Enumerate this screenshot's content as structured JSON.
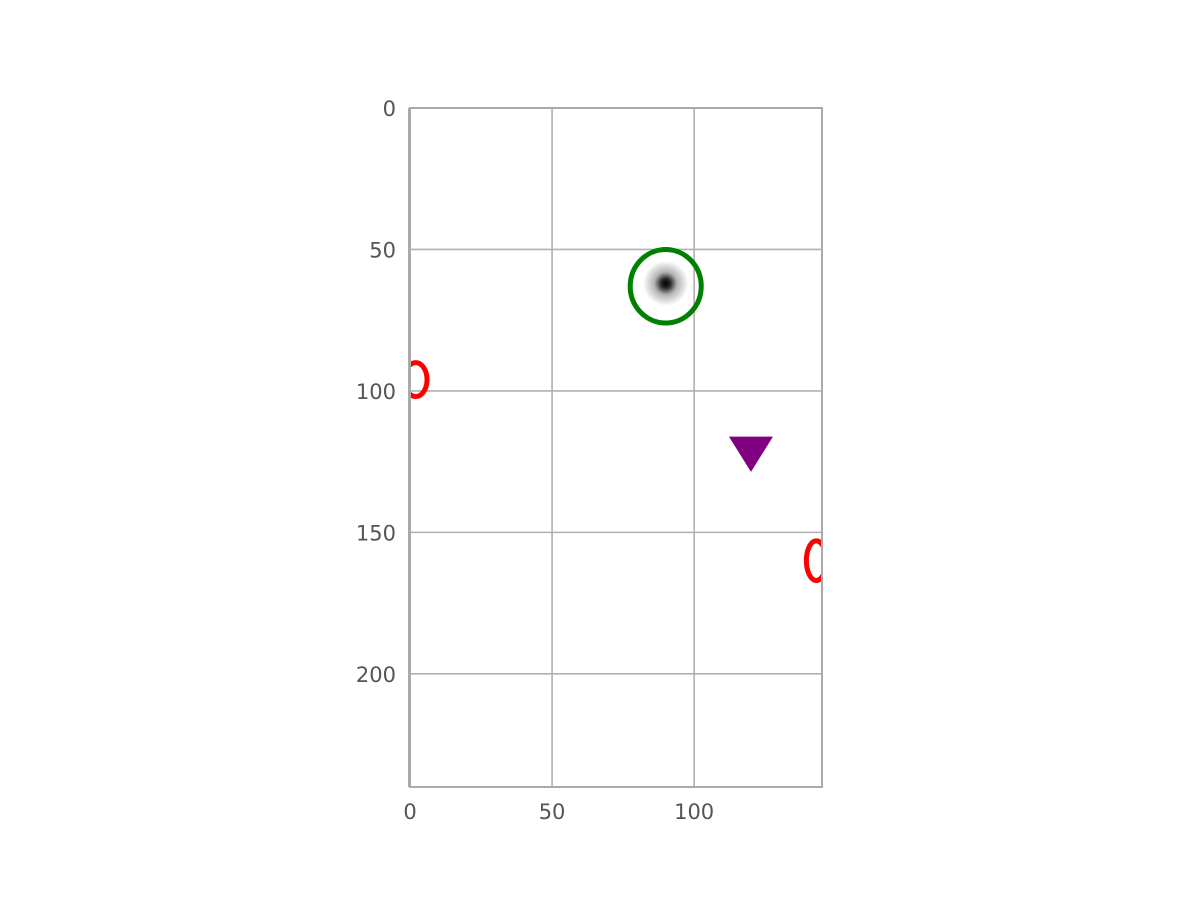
{
  "chart_data": {
    "type": "scatter",
    "xlim": [
      0,
      145
    ],
    "ylim": [
      240,
      0
    ],
    "x_ticks": [
      0,
      50,
      100
    ],
    "y_ticks": [
      0,
      50,
      100,
      150,
      200
    ],
    "x_tick_labels": [
      "0",
      "50",
      "100"
    ],
    "y_tick_labels": [
      "0",
      "50",
      "100",
      "150",
      "200"
    ],
    "grid": true,
    "background": "image",
    "bright_spot": {
      "x": 90,
      "y": 62,
      "sigma": 2.5
    },
    "markers": [
      {
        "kind": "ellipse",
        "x": 90,
        "y": 63,
        "rx": 12.5,
        "ry": 13,
        "color": "#008000"
      },
      {
        "kind": "ellipse",
        "x": 2,
        "y": 96,
        "rx": 4,
        "ry": 6,
        "color": "#ff0000"
      },
      {
        "kind": "ellipse",
        "x": 143,
        "y": 160,
        "rx": 3.5,
        "ry": 7,
        "color": "#ff0000"
      },
      {
        "kind": "triangle-down",
        "x": 120,
        "y": 122,
        "color": "#800080"
      }
    ],
    "colors": {
      "grid": "#b0b0b0",
      "spine": "#aaaaaa",
      "tick_label": "#555555"
    }
  }
}
